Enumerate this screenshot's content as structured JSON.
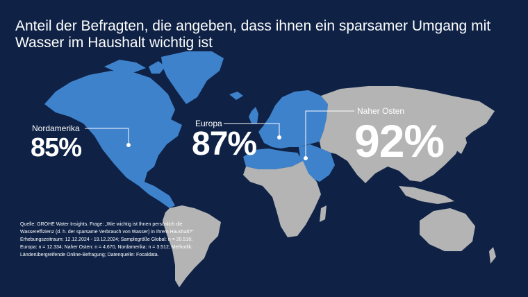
{
  "title": "Anteil der Befragten, die angeben, dass ihnen ein sparsamer Umgang mit Wasser im Haushalt wichtig ist",
  "regions": [
    {
      "name": "Nordamerika",
      "value": "85%"
    },
    {
      "name": "Europa",
      "value": "87%"
    },
    {
      "name": "Naher Osten",
      "value": "92%"
    }
  ],
  "source": "Quelle: GROHE Water Insights. Frage: „Wie wichtig ist Ihnen persönlich die Wassereffizienz (d. h. der sparsame Verbrauch von Wasser) in Ihrem Haushalt?“ Erhebungszeitraum: 12.12.2024 - 19.12.2024; Samplegröße Global: n = 20.516; Europa: n = 12.334; Naher Osten: n = 4.670, Nordamerika: n = 3.512; Methodik: Länderübergreifende Online-Befragung; Datenquelle: Focaldata.",
  "colors": {
    "background": "#0f2246",
    "highlight": "#3f82cc",
    "land": "#b4b4b4",
    "text": "#ffffff"
  }
}
